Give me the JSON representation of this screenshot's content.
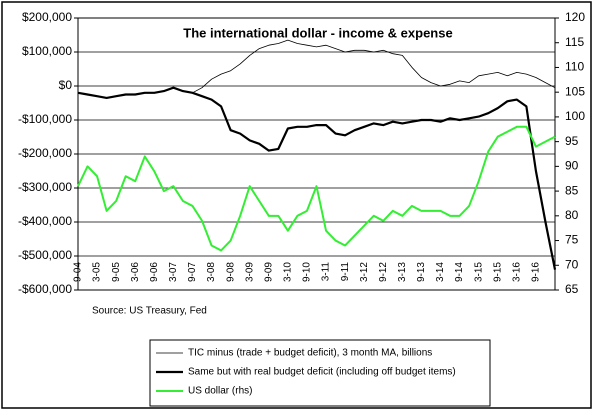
{
  "chart_data": {
    "type": "line",
    "title": "The international dollar - income & expense",
    "annotation": "Source: US Treasury, Fed",
    "categories": [
      "9-04",
      null,
      "3-05",
      null,
      "9-05",
      null,
      "3-06",
      null,
      "9-06",
      null,
      "3-07",
      null,
      "9-07",
      null,
      "3-08",
      null,
      "9-08",
      null,
      "3-09",
      null,
      "9-09",
      null,
      "3-10",
      null,
      "9-10",
      null,
      "3-11",
      null,
      "9-11",
      null,
      "3-12",
      null,
      "9-12",
      null,
      "3-13",
      null,
      "9-13",
      null,
      "3-14",
      null,
      "9-14",
      null,
      "3-15",
      null,
      "9-15",
      null,
      "3-16",
      null,
      "9-16",
      null,
      null
    ],
    "series": [
      {
        "name": "TIC minus (trade + budget deficit), 3 month MA, billions",
        "color": "#000000",
        "width": 0.8,
        "values": [
          -20000,
          -25000,
          -30000,
          -35000,
          -30000,
          -25000,
          -25000,
          -20000,
          -20000,
          -15000,
          -5000,
          -15000,
          -20000,
          -5000,
          20000,
          35000,
          45000,
          65000,
          90000,
          110000,
          120000,
          125000,
          135000,
          125000,
          120000,
          115000,
          120000,
          110000,
          100000,
          105000,
          105000,
          100000,
          105000,
          95000,
          90000,
          55000,
          25000,
          10000,
          0,
          5000,
          15000,
          10000,
          30000,
          35000,
          40000,
          30000,
          40000,
          35000,
          25000,
          10000,
          -5000
        ]
      },
      {
        "name": "Same but with real budget deficit (including off budget items)",
        "color": "#000000",
        "width": 2.2,
        "values": [
          -20000,
          -25000,
          -30000,
          -35000,
          -30000,
          -25000,
          -25000,
          -20000,
          -20000,
          -15000,
          -5000,
          -15000,
          -20000,
          -30000,
          -40000,
          -60000,
          -130000,
          -140000,
          -160000,
          -170000,
          -190000,
          -185000,
          -125000,
          -120000,
          -120000,
          -115000,
          -115000,
          -140000,
          -145000,
          -130000,
          -120000,
          -110000,
          -115000,
          -105000,
          -110000,
          -105000,
          -100000,
          -100000,
          -105000,
          -95000,
          -100000,
          -95000,
          -90000,
          -80000,
          -65000,
          -45000,
          -40000,
          -60000,
          -250000,
          -400000,
          -540000
        ]
      },
      {
        "name": "US dollar (rhs)",
        "color": "#33ee33",
        "width": 2,
        "axis": "y2",
        "values": [
          86,
          90,
          88,
          81,
          83,
          88,
          87,
          92,
          89,
          85,
          86,
          83,
          82,
          79,
          74,
          73,
          75,
          80,
          86,
          83,
          80,
          80,
          77,
          80,
          81,
          86,
          77,
          75,
          74,
          76,
          78,
          80,
          79,
          81,
          80,
          82,
          81,
          81,
          81,
          80,
          80,
          82,
          87,
          93,
          96,
          97,
          98,
          98,
          94,
          95,
          96
        ]
      }
    ],
    "ylim": [
      -600000,
      200000
    ],
    "yticks": [
      {
        "value": -600000,
        "label": "-$600,000"
      },
      {
        "value": -500000,
        "label": "-$500,000"
      },
      {
        "value": -400000,
        "label": "-$400,000"
      },
      {
        "value": -300000,
        "label": "-$300,000"
      },
      {
        "value": -200000,
        "label": "-$200,000"
      },
      {
        "value": -100000,
        "label": "-$100,000"
      },
      {
        "value": 0,
        "label": "$0"
      },
      {
        "value": 100000,
        "label": "$100,000"
      },
      {
        "value": 200000,
        "label": "$200,000"
      }
    ],
    "y2lim": [
      65,
      120
    ],
    "y2ticks": [
      65,
      70,
      75,
      80,
      85,
      90,
      95,
      100,
      105,
      110,
      115,
      120
    ],
    "grid": true
  }
}
